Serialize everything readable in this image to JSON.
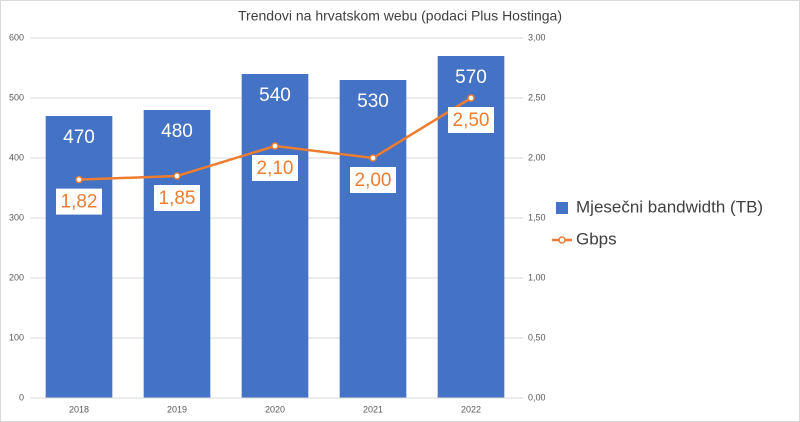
{
  "chart_data": {
    "type": "bar",
    "title": "Trendovi na hrvatskom webu (podaci Plus Hostinga)",
    "categories": [
      "2018",
      "2019",
      "2020",
      "2021",
      "2022"
    ],
    "series": [
      {
        "name": "Mjesečni bandwidth (TB)",
        "type": "bar",
        "color": "#4472c4",
        "values": [
          470,
          480,
          540,
          530,
          570
        ]
      },
      {
        "name": "Gbps",
        "type": "line",
        "color": "#ed7d31",
        "axis": "y2",
        "values": [
          1.82,
          1.85,
          2.1,
          2.0,
          2.5
        ],
        "value_labels": [
          "1,82",
          "1,85",
          "2,10",
          "2,00",
          "2,50"
        ]
      }
    ],
    "ylim": [
      0,
      600
    ],
    "yticks": [
      0,
      100,
      200,
      300,
      400,
      500,
      600
    ],
    "y2lim": [
      0,
      3
    ],
    "y2ticks": [
      {
        "value": 0,
        "label": "0,00"
      },
      {
        "value": 0.5,
        "label": "0,50"
      },
      {
        "value": 1,
        "label": "1,00"
      },
      {
        "value": 1.5,
        "label": "1,50"
      },
      {
        "value": 2,
        "label": "2,00"
      },
      {
        "value": 2.5,
        "label": "2,50"
      },
      {
        "value": 3,
        "label": "3,00"
      }
    ],
    "grid": true,
    "legend": "right"
  }
}
